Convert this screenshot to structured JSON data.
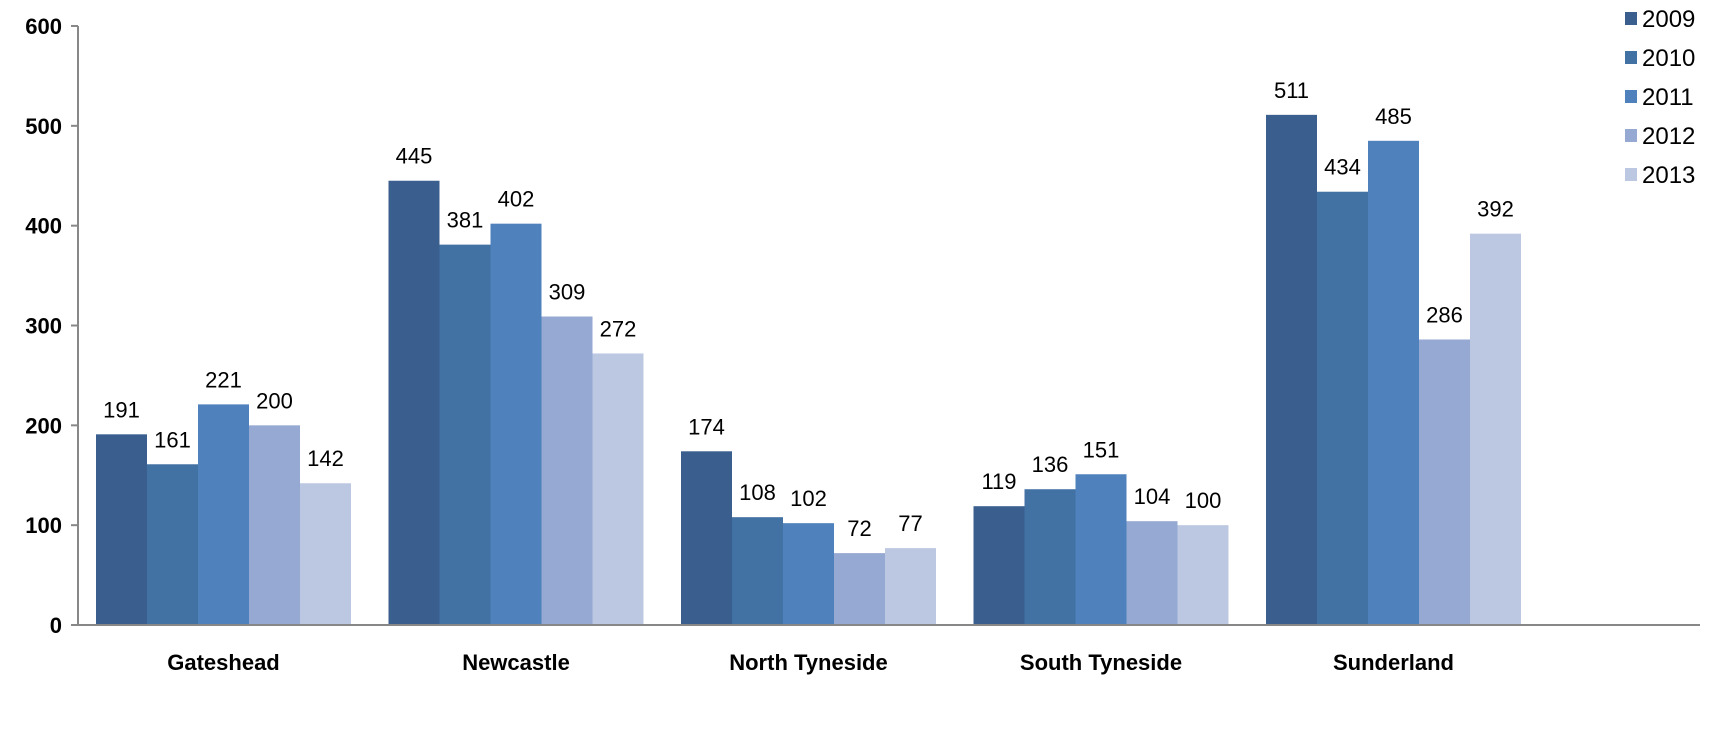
{
  "chart_data": {
    "type": "bar",
    "title": "",
    "xlabel": "",
    "ylabel": "",
    "ylim": [
      0,
      600
    ],
    "yticks": [
      0,
      100,
      200,
      300,
      400,
      500,
      600
    ],
    "grid": false,
    "legend_position": "top-right",
    "categories": [
      "Gateshead",
      "Newcastle",
      "North Tyneside",
      "South Tyneside",
      "Sunderland"
    ],
    "series": [
      {
        "name": "2009",
        "color": "#3a5f8f",
        "values": [
          191,
          445,
          174,
          119,
          511
        ]
      },
      {
        "name": "2010",
        "color": "#4271a4",
        "values": [
          161,
          381,
          108,
          136,
          434
        ]
      },
      {
        "name": "2011",
        "color": "#4f81bd",
        "values": [
          221,
          402,
          102,
          151,
          485
        ]
      },
      {
        "name": "2012",
        "color": "#95a9d2",
        "values": [
          200,
          309,
          72,
          104,
          286
        ]
      },
      {
        "name": "2013",
        "color": "#bcc8e2",
        "values": [
          142,
          272,
          77,
          100,
          392
        ]
      }
    ]
  }
}
